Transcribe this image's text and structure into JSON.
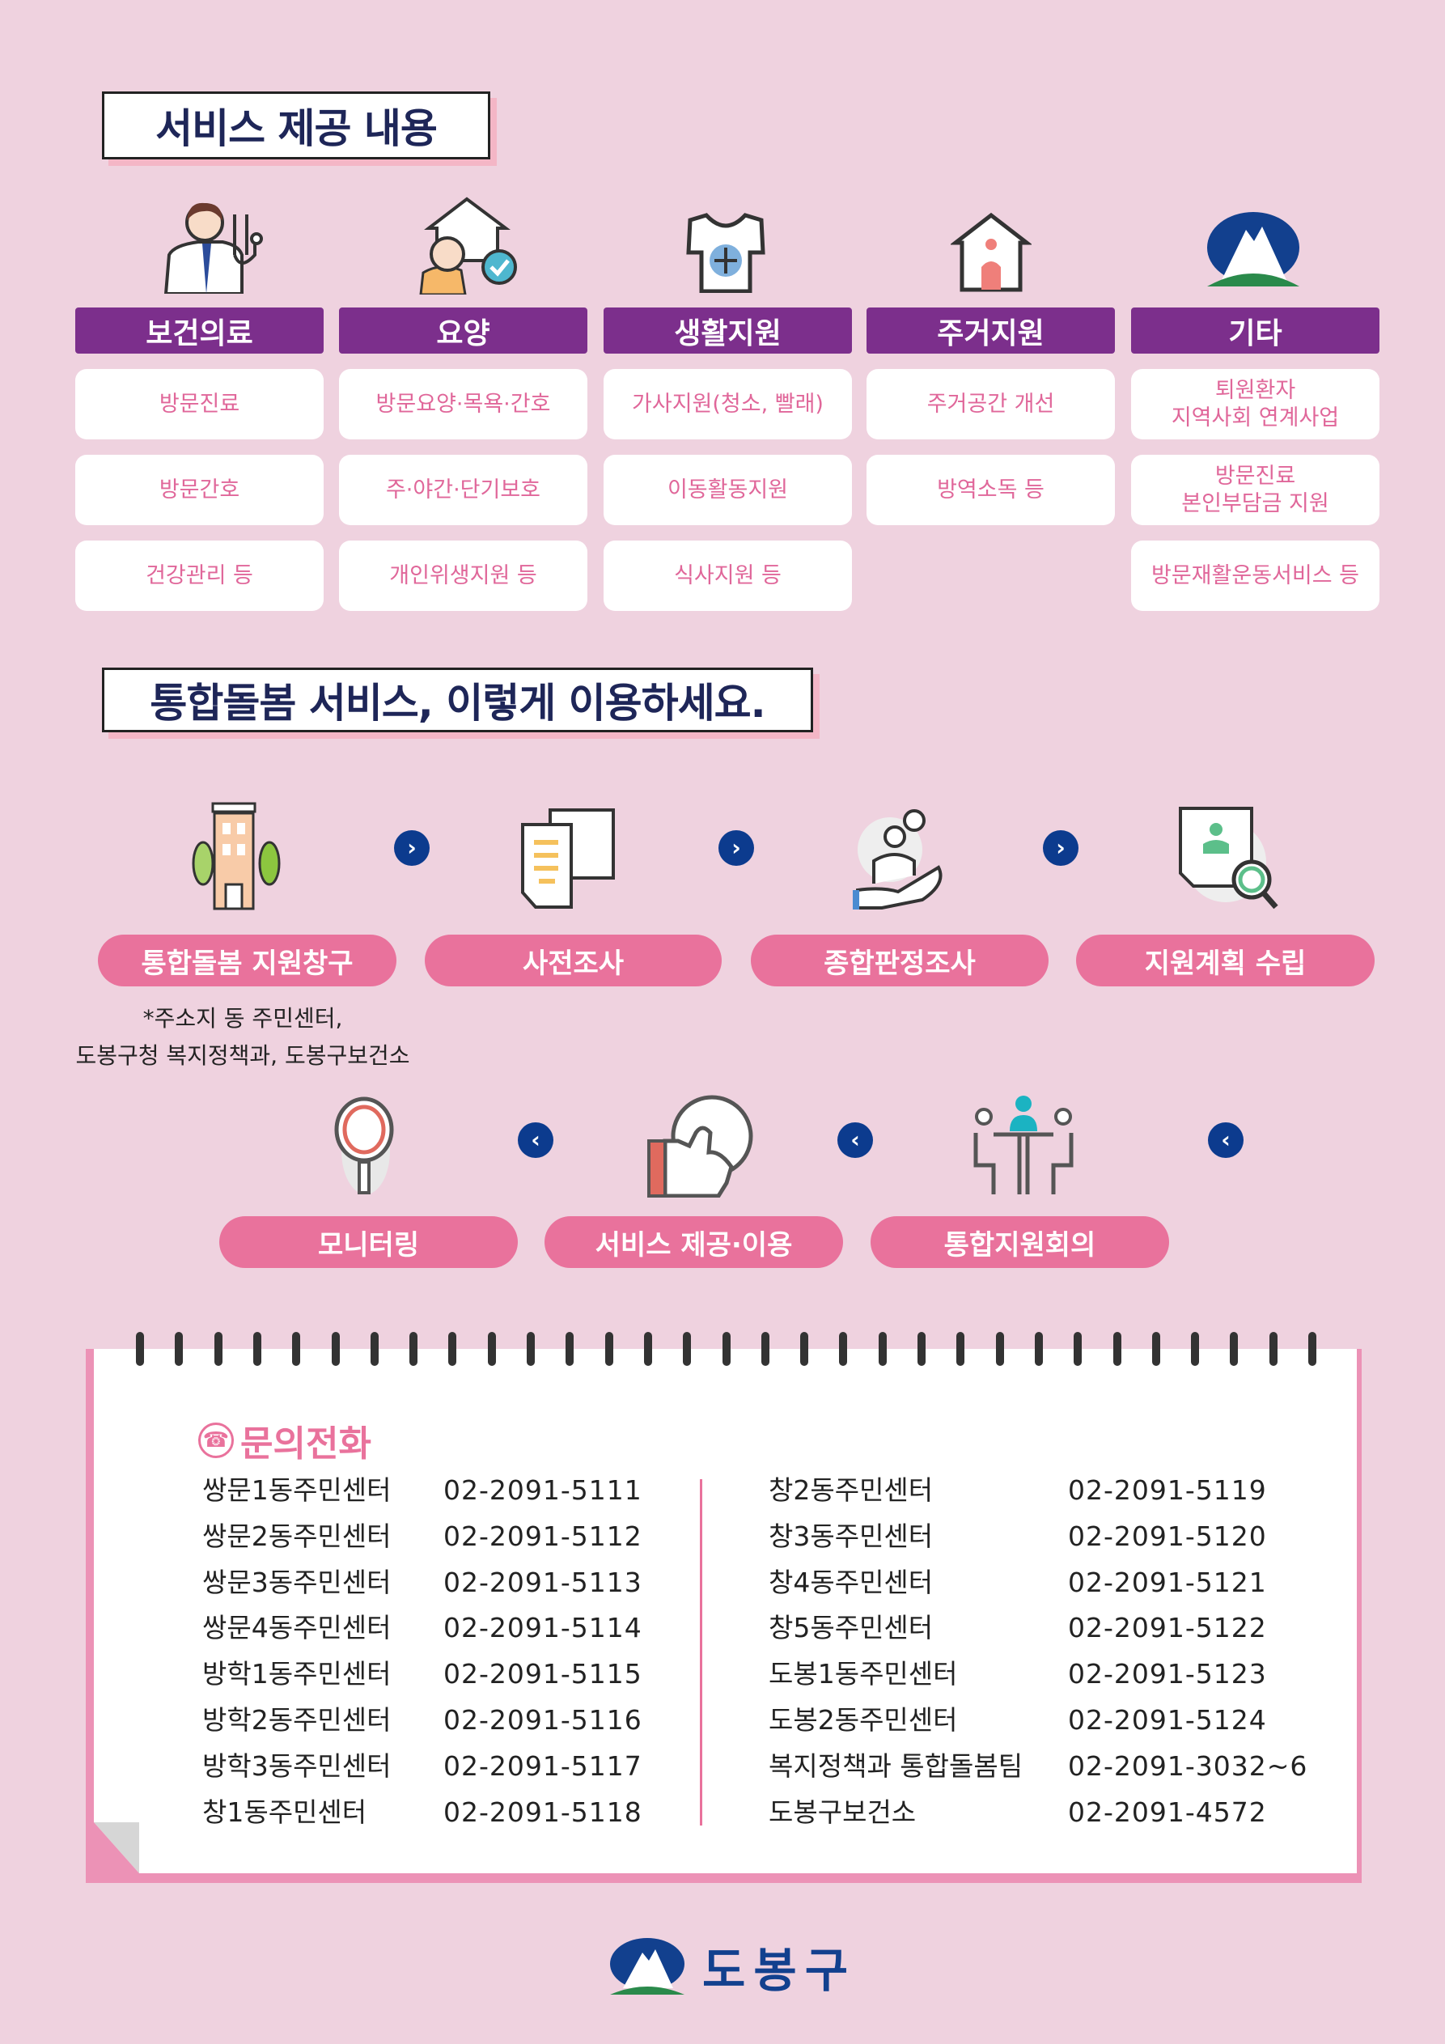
{
  "section1": {
    "title": "서비스 제공 내용"
  },
  "categories": [
    {
      "label": "보건의료",
      "icon": "doctor-icon",
      "items": [
        "방문진료",
        "방문간호",
        "건강관리 등"
      ]
    },
    {
      "label": "요양",
      "icon": "elderly-care-icon",
      "items": [
        "방문요양·목욕·간호",
        "주·야간·단기보호",
        "개인위생지원 등"
      ]
    },
    {
      "label": "생활지원",
      "icon": "tshirt-icon",
      "items": [
        "가사지원(청소, 빨래)",
        "이동활동지원",
        "식사지원 등"
      ]
    },
    {
      "label": "주거지원",
      "icon": "house-icon",
      "items": [
        "주거공간 개선",
        "방역소독 등"
      ]
    },
    {
      "label": "기타",
      "icon": "dobong-logo-icon",
      "items": [
        "퇴원환자\n지역사회 연계사업",
        "방문진료\n본인부담금 지원",
        "방문재활운동서비스 등"
      ]
    }
  ],
  "section2": {
    "title": "통합돌봄 서비스, 이렇게 이용하세요."
  },
  "steps": [
    {
      "label": "통합돌봄 지원창구",
      "icon": "building-icon"
    },
    {
      "label": "사전조사",
      "icon": "documents-icon"
    },
    {
      "label": "종합판정조사",
      "icon": "caring-hand-icon"
    },
    {
      "label": "지원계획 수립",
      "icon": "profile-search-icon"
    },
    {
      "label": "통합지원회의",
      "icon": "meeting-icon"
    },
    {
      "label": "서비스 제공·이용",
      "icon": "thumbs-up-icon"
    },
    {
      "label": "모니터링",
      "icon": "magnifier-icon"
    }
  ],
  "note": {
    "line1": "*주소지 동 주민센터,",
    "line2": "도봉구청 복지정책과, 도봉구보건소"
  },
  "contact": {
    "title": "문의전화",
    "left": [
      {
        "name": "쌍문1동주민센터",
        "phone": "02-2091-5111"
      },
      {
        "name": "쌍문2동주민센터",
        "phone": "02-2091-5112"
      },
      {
        "name": "쌍문3동주민센터",
        "phone": "02-2091-5113"
      },
      {
        "name": "쌍문4동주민센터",
        "phone": "02-2091-5114"
      },
      {
        "name": "방학1동주민센터",
        "phone": "02-2091-5115"
      },
      {
        "name": "방학2동주민센터",
        "phone": "02-2091-5116"
      },
      {
        "name": "방학3동주민센터",
        "phone": "02-2091-5117"
      },
      {
        "name": "창1동주민센터",
        "phone": "02-2091-5118"
      }
    ],
    "right": [
      {
        "name": "창2동주민센터",
        "phone": "02-2091-5119"
      },
      {
        "name": "창3동주민센터",
        "phone": "02-2091-5120"
      },
      {
        "name": "창4동주민센터",
        "phone": "02-2091-5121"
      },
      {
        "name": "창5동주민센터",
        "phone": "02-2091-5122"
      },
      {
        "name": "도봉1동주민센터",
        "phone": "02-2091-5123"
      },
      {
        "name": "도봉2동주민센터",
        "phone": "02-2091-5124"
      },
      {
        "name": "복지정책과 통합돌봄팀",
        "phone": "02-2091-3032~6"
      },
      {
        "name": "도봉구보건소",
        "phone": "02-2091-4572"
      }
    ]
  },
  "footer": {
    "logo_text": "도봉구"
  },
  "colors": {
    "background": "#efd2df",
    "category": "#7c2f8c",
    "pink": "#e9729c",
    "navy": "#1e2658",
    "arrow": "#0c3b8e"
  }
}
